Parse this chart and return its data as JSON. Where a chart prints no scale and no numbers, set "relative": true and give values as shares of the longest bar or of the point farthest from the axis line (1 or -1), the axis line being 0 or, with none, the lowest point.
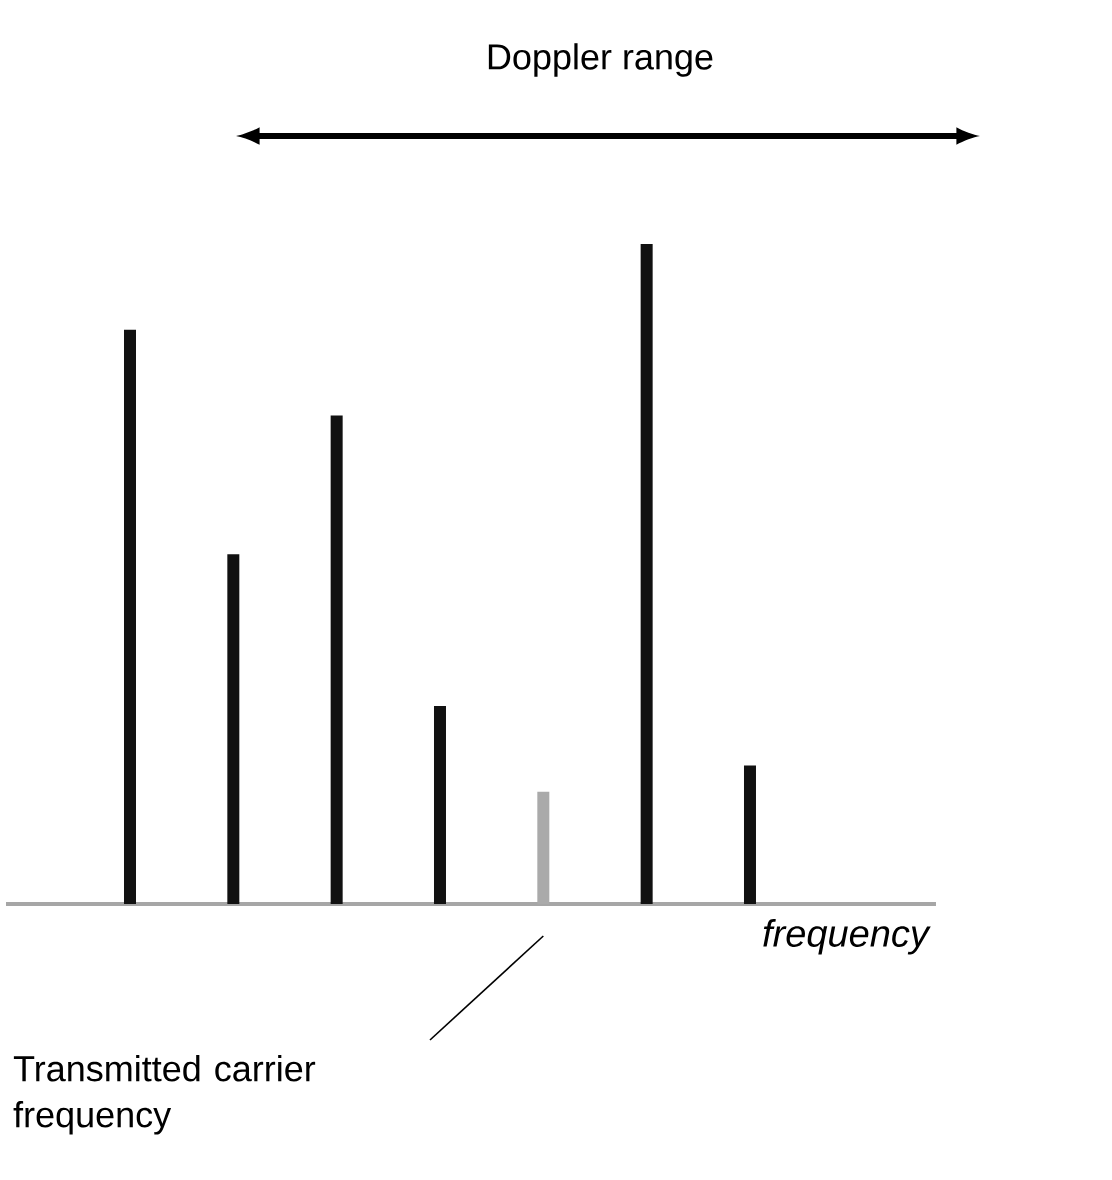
{
  "chart_data": {
    "type": "bar",
    "relative": true,
    "title": "Doppler range",
    "xlabel": "frequency",
    "categories": [
      null,
      null,
      null,
      null,
      null,
      null,
      null
    ],
    "values": [
      0.87,
      0.53,
      0.74,
      0.3,
      0.17,
      1,
      0.21
    ],
    "colors": [
      "#111111",
      "#111111",
      "#111111",
      "#111111",
      "#aaaaaa",
      "#111111",
      "#111111"
    ],
    "annotations": [
      "Transmitted carrier frequency"
    ]
  }
}
